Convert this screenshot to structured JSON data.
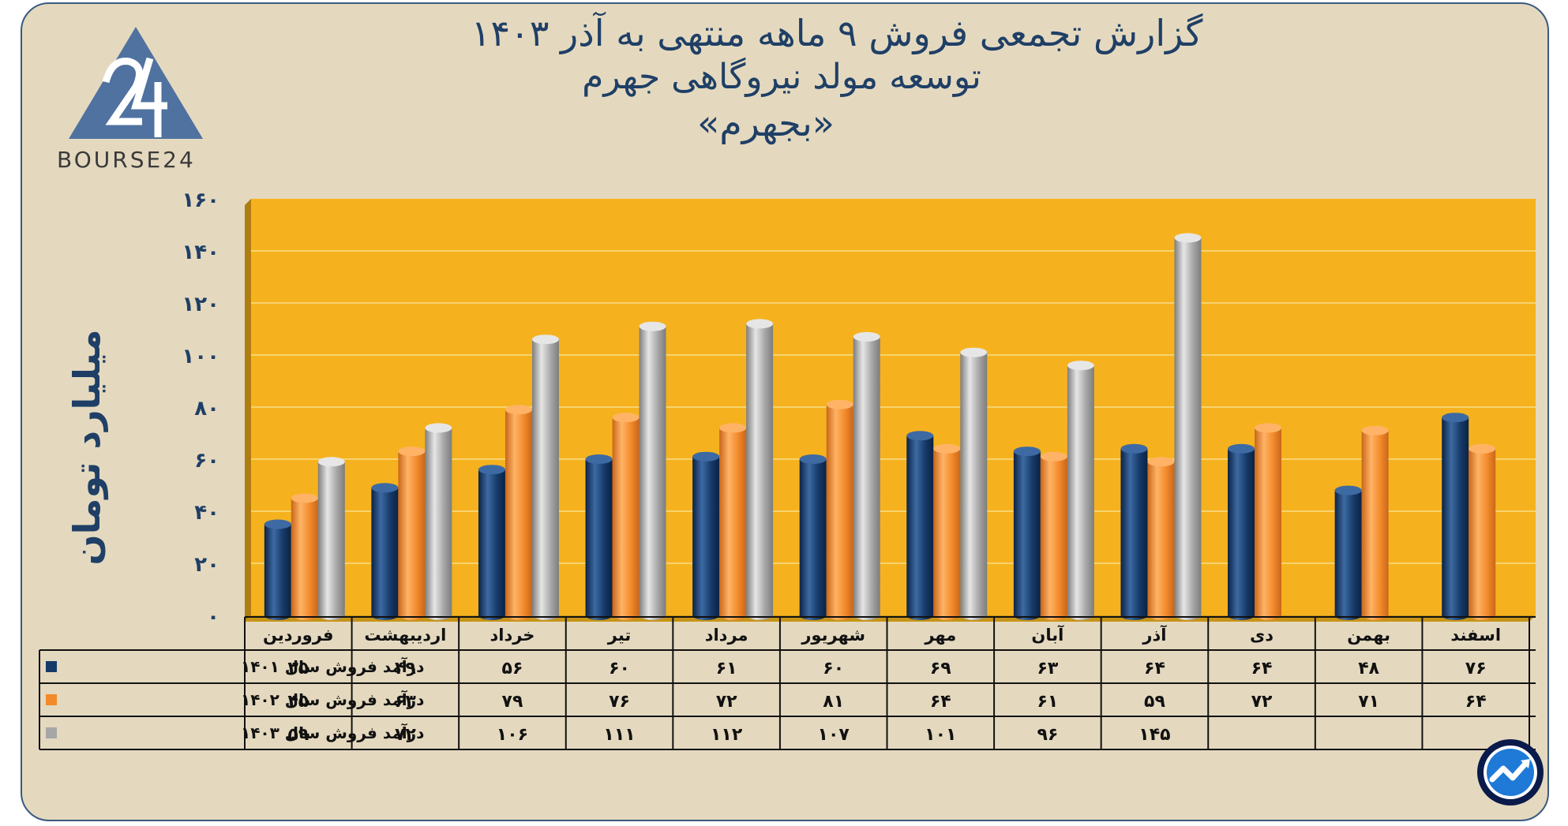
{
  "title_lines": [
    "گزارش تجمعی فروش ۹ ماهه منتهی به آذر ۱۴۰۳",
    "توسعه مولد نیروگاهی جهرم",
    "«بجهرم»"
  ],
  "logo_text": "BOURSE24",
  "colors": {
    "background": "#e4d9bf",
    "plot": "#f6b21e",
    "s1401": "#163a68",
    "s1402": "#f28a2a",
    "s1403": "#a6a6a6",
    "text": "#1f3f66"
  },
  "chart_data": {
    "type": "bar",
    "title": "گزارش تجمعی فروش ۹ ماهه منتهی به آذر ۱۴۰۳",
    "ylabel": "میلیارد تومان",
    "ylim": [
      0,
      160
    ],
    "yticks": [
      "۰",
      "۲۰",
      "۴۰",
      "۶۰",
      "۸۰",
      "۱۰۰",
      "۱۲۰",
      "۱۴۰",
      "۱۶۰"
    ],
    "categories": [
      "فروردین",
      "اردیبهشت",
      "خرداد",
      "تیر",
      "مرداد",
      "شهریور",
      "مهر",
      "آبان",
      "آذر",
      "دی",
      "بهمن",
      "اسفند"
    ],
    "series": [
      {
        "name": "درآمد فروش سال ۱۴۰۱",
        "values": [
          35,
          49,
          56,
          60,
          61,
          60,
          69,
          63,
          64,
          64,
          48,
          76
        ],
        "labels": [
          "۳۵",
          "۴۹",
          "۵۶",
          "۶۰",
          "۶۱",
          "۶۰",
          "۶۹",
          "۶۳",
          "۶۴",
          "۶۴",
          "۴۸",
          "۷۶"
        ]
      },
      {
        "name": "درآمد فروش سال ۱۴۰۲",
        "values": [
          45,
          63,
          79,
          76,
          72,
          81,
          64,
          61,
          59,
          72,
          71,
          64
        ],
        "labels": [
          "۴۵",
          "۶۳",
          "۷۹",
          "۷۶",
          "۷۲",
          "۸۱",
          "۶۴",
          "۶۱",
          "۵۹",
          "۷۲",
          "۷۱",
          "۶۴"
        ]
      },
      {
        "name": "درآمد فروش سال ۱۴۰۳",
        "values": [
          59,
          72,
          106,
          111,
          112,
          107,
          101,
          96,
          145,
          null,
          null,
          null
        ],
        "labels": [
          "۵۹",
          "۷۲",
          "۱۰۶",
          "۱۱۱",
          "۱۱۲",
          "۱۰۷",
          "۱۰۱",
          "۹۶",
          "۱۴۵",
          "",
          "",
          ""
        ]
      }
    ],
    "grid": true,
    "legend": "table-left"
  }
}
